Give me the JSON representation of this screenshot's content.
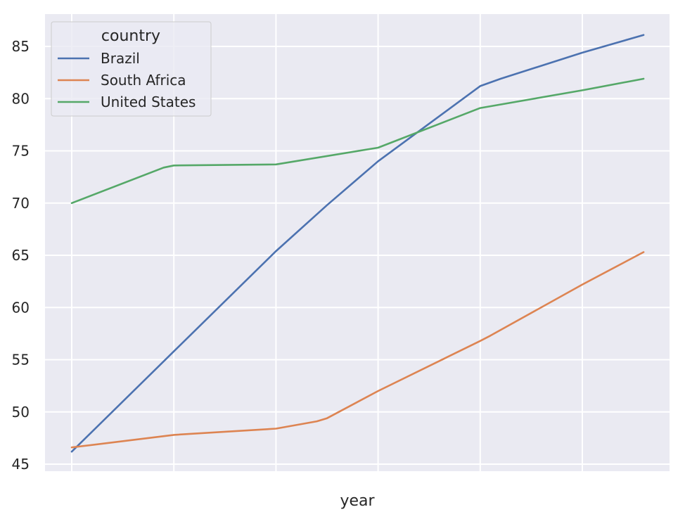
{
  "chart_data": {
    "type": "line",
    "xlabel": "year",
    "ylabel": "",
    "ylim": [
      44.5,
      87.5
    ],
    "yticks": [
      45,
      50,
      55,
      60,
      65,
      70,
      75,
      80,
      85
    ],
    "x_gridlines": 6,
    "grid": true,
    "background": "#eaeaf2",
    "legend": {
      "title": "country",
      "placement": "top-left"
    },
    "x": [
      0,
      1,
      2,
      3,
      4,
      5,
      5.6
    ],
    "series": [
      {
        "name": "Brazil",
        "color": "#4c72b0",
        "points": [
          [
            0,
            46.2
          ],
          [
            1,
            55.8
          ],
          [
            2,
            65.4
          ],
          [
            2.5,
            69.8
          ],
          [
            3,
            74.0
          ],
          [
            4,
            81.2
          ],
          [
            4.2,
            81.9
          ],
          [
            5,
            84.4
          ],
          [
            5.6,
            86.1
          ]
        ]
      },
      {
        "name": "South Africa",
        "color": "#dd8452",
        "points": [
          [
            0,
            46.6
          ],
          [
            1,
            47.8
          ],
          [
            2,
            48.4
          ],
          [
            2.4,
            49.1
          ],
          [
            2.5,
            49.4
          ],
          [
            3,
            52.0
          ],
          [
            4,
            56.8
          ],
          [
            4.1,
            57.3
          ],
          [
            5,
            62.2
          ],
          [
            5.6,
            65.3
          ]
        ]
      },
      {
        "name": "United States",
        "color": "#55a868",
        "points": [
          [
            0,
            70.0
          ],
          [
            0.9,
            73.4
          ],
          [
            1,
            73.6
          ],
          [
            2,
            73.7
          ],
          [
            3,
            75.3
          ],
          [
            4,
            79.1
          ],
          [
            5,
            80.8
          ],
          [
            5.6,
            81.9
          ]
        ]
      }
    ]
  }
}
